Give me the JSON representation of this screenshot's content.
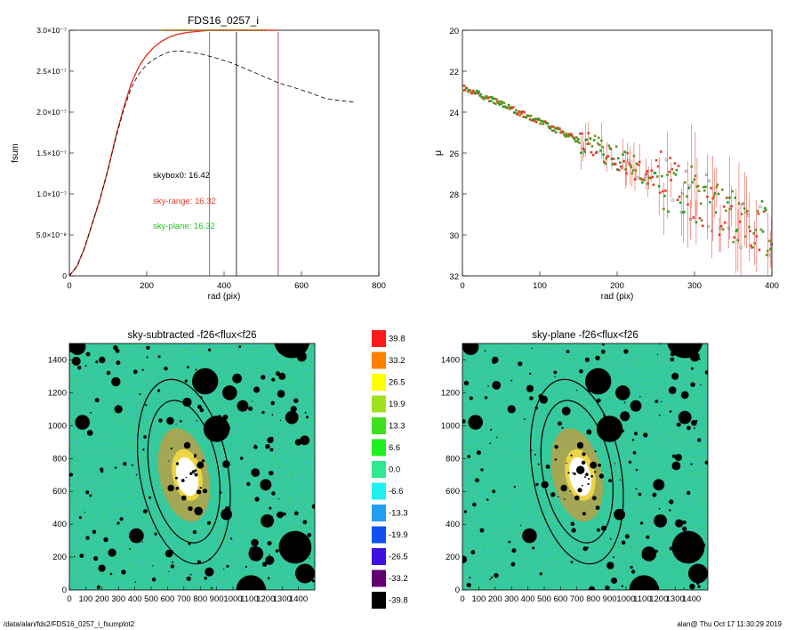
{
  "chart_data": [
    {
      "type": "line",
      "title": "FDS16_0257_i",
      "xlabel": "rad (pix)",
      "ylabel": "fsum",
      "xlim": [
        0,
        800
      ],
      "ylim": [
        0,
        3e-07
      ],
      "xticks": [
        "0",
        "200",
        "400",
        "600",
        "800"
      ],
      "yticks": [
        "0",
        "5.0×10⁻⁸",
        "1.0×10⁻⁷",
        "1.5×10⁻⁷",
        "2.0×10⁻⁷",
        "2.5×10⁻⁷",
        "3.0×10⁻⁷"
      ],
      "series": [
        {
          "color": "#e8392a",
          "style": "solid",
          "x": [
            0,
            20,
            40,
            60,
            80,
            100,
            120,
            140,
            160,
            180,
            200,
            220,
            240,
            260,
            280,
            300,
            320,
            340,
            360,
            380,
            400,
            430,
            460,
            500,
            540
          ],
          "y": [
            0,
            1.2e-08,
            3.5e-08,
            6.5e-08,
            9.5e-08,
            1.3e-07,
            1.7e-07,
            2.05e-07,
            2.35e-07,
            2.56e-07,
            2.7e-07,
            2.8e-07,
            2.87e-07,
            2.92e-07,
            2.95e-07,
            2.97e-07,
            2.98e-07,
            2.99e-07,
            3e-07,
            3e-07,
            3e-07,
            3e-07,
            3e-07,
            3e-07,
            3e-07
          ]
        },
        {
          "color": "#000000",
          "style": "dashed",
          "x": [
            0,
            20,
            40,
            60,
            80,
            100,
            120,
            140,
            160,
            180,
            200,
            220,
            240,
            260,
            280,
            300,
            340,
            380,
            420,
            460,
            500,
            540,
            580,
            620,
            660,
            700,
            740
          ],
          "y": [
            0,
            1.2e-08,
            3.5e-08,
            6.5e-08,
            9.5e-08,
            1.3e-07,
            1.68e-07,
            2.02e-07,
            2.3e-07,
            2.47e-07,
            2.58e-07,
            2.65e-07,
            2.7e-07,
            2.74e-07,
            2.75e-07,
            2.74e-07,
            2.71e-07,
            2.66e-07,
            2.6e-07,
            2.52e-07,
            2.44e-07,
            2.36e-07,
            2.3e-07,
            2.24e-07,
            2.17e-07,
            2.14e-07,
            2.12e-07
          ]
        }
      ],
      "vlines": [
        {
          "x": 362,
          "color": "#e8392a"
        },
        {
          "x": 432,
          "color": "#000000"
        },
        {
          "x": 540,
          "color": "#7a3a2a"
        }
      ],
      "annotations": [
        {
          "text": "skybox0: 16.42",
          "color": "#000000"
        },
        {
          "text": "sky-range: 16.32",
          "color": "#e8392a"
        },
        {
          "text": "sky-plane: 16.32",
          "color": "#22c422"
        }
      ]
    },
    {
      "type": "scatter",
      "xlabel": "rad (pix)",
      "ylabel": "μ",
      "xlim": [
        0,
        400
      ],
      "ylim": [
        32,
        20
      ],
      "inverted_y": true,
      "xticks": [
        "0",
        "100",
        "200",
        "300",
        "400"
      ],
      "yticks": [
        "20",
        "22",
        "24",
        "26",
        "28",
        "30",
        "32"
      ],
      "profile": {
        "x_start": 0,
        "x_end": 400,
        "mu_start": 22.8,
        "mu_end": 30.0
      },
      "colors": [
        "#e8392a",
        "#7a8a1a",
        "#22a022",
        "#000000"
      ]
    },
    {
      "type": "heatmap",
      "title": "sky-subtracted -f26<flux<f26",
      "xlim": [
        0,
        1500
      ],
      "ylim": [
        0,
        1500
      ],
      "xticks": [
        "0",
        "100",
        "200",
        "300",
        "400",
        "500",
        "600",
        "700",
        "800",
        "900",
        "1000",
        "1100",
        "1200",
        "1300",
        "1400"
      ],
      "yticks": [
        "0",
        "200",
        "400",
        "600",
        "800",
        "1000",
        "1200",
        "1400"
      ]
    },
    {
      "type": "heatmap",
      "title": "sky-plane -f26<flux<f26",
      "xlim": [
        0,
        1500
      ],
      "ylim": [
        0,
        1500
      ],
      "xticks": [
        "0",
        "100",
        "200",
        "300",
        "400",
        "500",
        "600",
        "700",
        "800",
        "900",
        "1000",
        "1100",
        "1200",
        "1300",
        "1400"
      ],
      "yticks": [
        "0",
        "200",
        "400",
        "600",
        "800",
        "1000",
        "1200",
        "1400"
      ]
    }
  ],
  "colorbar": {
    "labels": [
      "39.8",
      "33.2",
      "26.5",
      "19.9",
      "13.3",
      "6.6",
      "0.0",
      "-6.6",
      "-13.3",
      "-19.9",
      "-26.5",
      "-33.2",
      "-39.8"
    ],
    "colors": [
      "#ff1a1a",
      "#ff8000",
      "#ffff00",
      "#a0e020",
      "#40e020",
      "#20f020",
      "#30e890",
      "#20f0f0",
      "#20a0f0",
      "#1050f0",
      "#4010e0",
      "#600070",
      "#000000"
    ]
  },
  "masks": [
    {
      "x": 900,
      "y": 980,
      "r": 80
    },
    {
      "x": 980,
      "y": 1200,
      "r": 45
    },
    {
      "x": 1060,
      "y": 1120,
      "r": 35
    },
    {
      "x": 1210,
      "y": 420,
      "r": 40
    },
    {
      "x": 1200,
      "y": 640,
      "r": 35
    },
    {
      "x": 1360,
      "y": 1050,
      "r": 40
    },
    {
      "x": 1360,
      "y": 1520,
      "r": 110
    },
    {
      "x": 830,
      "y": 1270,
      "r": 80
    },
    {
      "x": 1380,
      "y": 260,
      "r": 100
    },
    {
      "x": 1110,
      "y": 0,
      "r": 90
    },
    {
      "x": 1440,
      "y": 100,
      "r": 60
    },
    {
      "x": 1140,
      "y": 220,
      "r": 45
    },
    {
      "x": 410,
      "y": 330,
      "r": 45
    },
    {
      "x": 80,
      "y": 1020,
      "r": 45
    },
    {
      "x": 50,
      "y": 1480,
      "r": 50
    },
    {
      "x": 960,
      "y": 460,
      "r": 35
    },
    {
      "x": 620,
      "y": 620,
      "r": 20
    },
    {
      "x": 700,
      "y": 560,
      "r": 15
    },
    {
      "x": 720,
      "y": 880,
      "r": 20
    },
    {
      "x": 800,
      "y": 760,
      "r": 22
    },
    {
      "x": 1420,
      "y": 1420,
      "r": 30
    },
    {
      "x": 200,
      "y": 1400,
      "r": 20
    },
    {
      "x": 300,
      "y": 1100,
      "r": 25
    },
    {
      "x": 1300,
      "y": 1300,
      "r": 22
    }
  ],
  "footer": {
    "left": "/data/alan/fds2/FDS16_0257_i_fsumplot2",
    "right": "alan@  Thu Oct 17 11:30:29 2019"
  }
}
